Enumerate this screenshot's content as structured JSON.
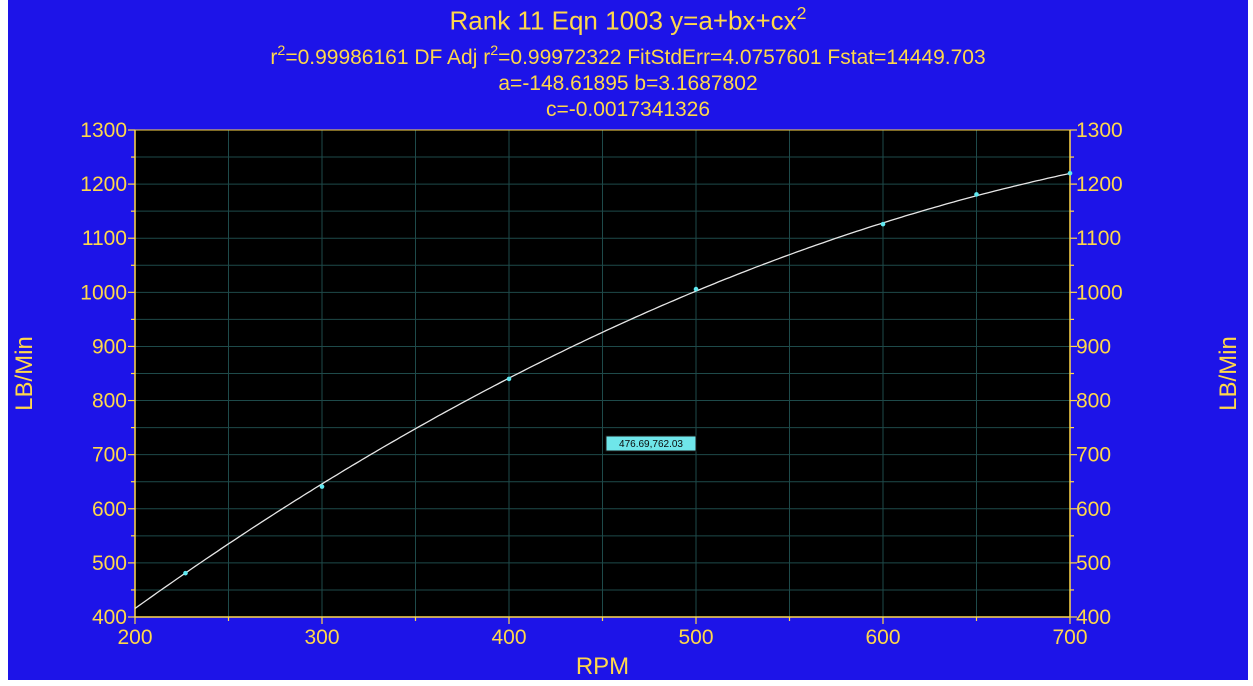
{
  "title_line_1_prefix": "Rank 11  Eqn 1003  y=a+bx+cx",
  "title_line_1_sup": "2",
  "stats": {
    "r2_label": "r",
    "r2_sup": "2",
    "r2_value": "=0.99986161  DF Adj r",
    "adj_sup": "2",
    "adj_value": "=0.99972322  FitStdErr=4.0757601  Fstat=14449.703"
  },
  "coef_line_1": "a=-148.61895 b=3.1687802",
  "coef_line_2": "c=-0.0017341326",
  "colors": {
    "frame": "#1d14e8",
    "plot_background": "#000000",
    "grid": "#1e4a4a",
    "curve": "#e6e6e6",
    "points": "#5fe8f0",
    "text": "#ffd84a",
    "axes": "#ffd84a"
  },
  "chart_data": {
    "type": "scatter",
    "equation": "y=a+bx+cx2",
    "coefficients": {
      "a": -148.61895,
      "b": 3.1687802,
      "c": -0.0017341326
    },
    "x": [
      227,
      300,
      400,
      500,
      600,
      650,
      700
    ],
    "y": [
      481,
      641,
      840,
      1006,
      1126,
      1181,
      1220
    ],
    "xlabel": "RPM",
    "ylabel": "LB/Min",
    "ylabel_right": "LB/Min",
    "xlim": [
      200,
      700
    ],
    "ylim": [
      400,
      1300
    ],
    "x_ticks": [
      200,
      300,
      400,
      500,
      600,
      700
    ],
    "y_ticks": [
      400,
      500,
      600,
      700,
      800,
      900,
      1000,
      1100,
      1200,
      1300
    ],
    "grid": true,
    "cursor_readout": "476.69,762.03"
  }
}
